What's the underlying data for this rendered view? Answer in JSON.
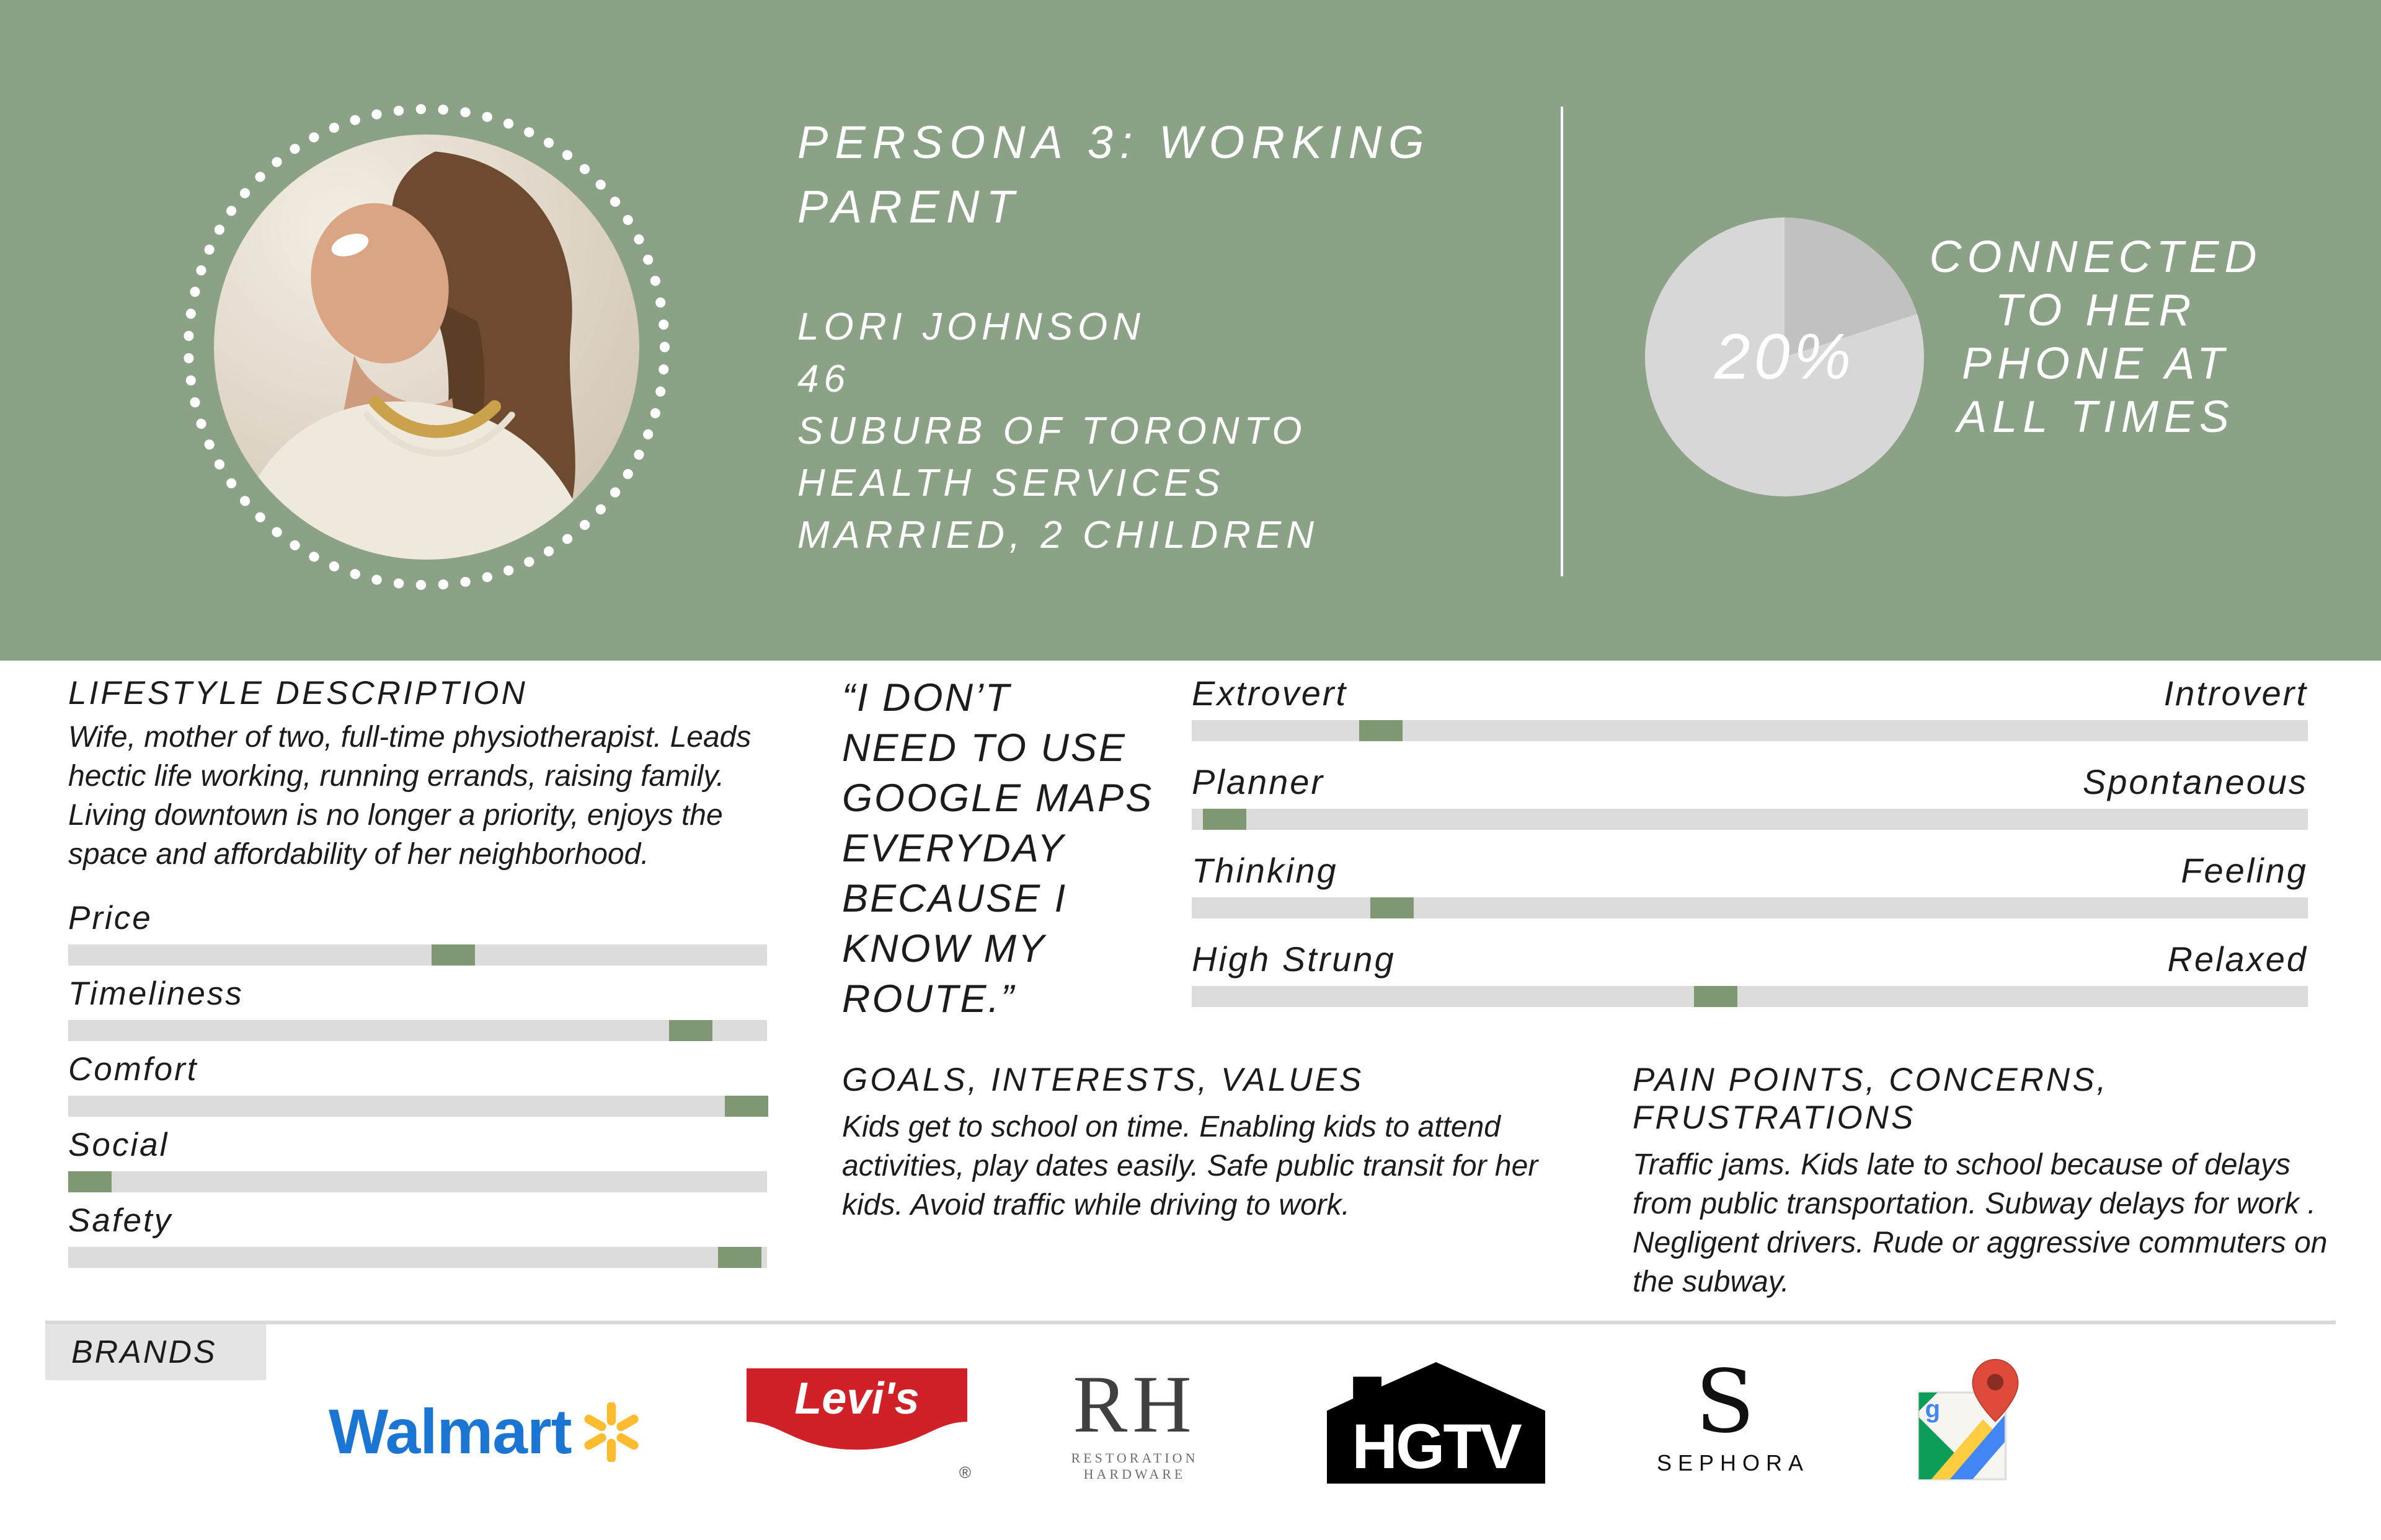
{
  "colors": {
    "header_bg": "#8ba287",
    "pie_light": "#d7d7d7",
    "pie_dark": "#c1c1c1",
    "track": "#dcdcdc",
    "marker": "#7f9873",
    "text_dark": "#1c1c1c",
    "divider": "#d8d8d8",
    "brands_box_bg": "#e4e4e4",
    "walmart_blue": "#1b75d2",
    "walmart_yellow": "#fdbb30",
    "levis_red": "#d02128",
    "gmaps_pin_red": "#de4b3b"
  },
  "header": {
    "title_lines": [
      "PERSONA 3: WORKING",
      "PARENT"
    ],
    "info_lines": [
      "LORI JOHNSON",
      "46",
      "SUBURB OF TORONTO",
      "HEALTH SERVICES",
      "MARRIED, 2 CHILDREN"
    ],
    "stat": {
      "percent": 20,
      "percent_label": "20%",
      "caption_lines": [
        "CONNECTED",
        "TO HER",
        "PHONE AT",
        "ALL TIMES"
      ]
    }
  },
  "lifestyle": {
    "heading": "LIFESTYLE DESCRIPTION",
    "body": "Wife, mother of two, full-time physiotherapist. Leads hectic life working, running errands, raising family. Living downtown is no longer a priority, enjoys the space and affordability of her neighborhood."
  },
  "sliders": {
    "items": [
      {
        "label": "Price",
        "value": 52
      },
      {
        "label": "Timeliness",
        "value": 86
      },
      {
        "label": "Comfort",
        "value": 94
      },
      {
        "label": "Social",
        "value": 0
      },
      {
        "label": "Safety",
        "value": 93
      }
    ]
  },
  "quote_lines": [
    "“I DON’T",
    "NEED TO USE",
    "GOOGLE MAPS",
    "EVERYDAY",
    "BECAUSE I",
    "KNOW MY",
    "ROUTE.”"
  ],
  "spectrums": {
    "items": [
      {
        "left": "Extrovert",
        "right": "Introvert",
        "value": 15
      },
      {
        "left": "Planner",
        "right": "Spontaneous",
        "value": 1
      },
      {
        "left": "Thinking",
        "right": "Feeling",
        "value": 16
      },
      {
        "left": "High Strung",
        "right": "Relaxed",
        "value": 45
      }
    ]
  },
  "goals": {
    "heading": "GOALS, INTERESTS, VALUES",
    "body": "Kids get to school on time. Enabling kids to attend activities, play dates easily. Safe public transit for her kids. Avoid traffic while driving to work."
  },
  "pain_points": {
    "heading": "PAIN POINTS, CONCERNS, FRUSTRATIONS",
    "body": "Traffic jams. Kids late to school because of delays from public transportation. Subway delays for work . Negligent drivers. Rude or aggressive commuters on the subway."
  },
  "brands": {
    "label": "BRANDS",
    "walmart": {
      "text": "Walmart"
    },
    "levis": {
      "text": "Levi's",
      "reg": "®"
    },
    "rh": {
      "letters": "RH",
      "subtext": "RESTORATION HARDWARE"
    },
    "hgtv": {
      "text": "HGTV"
    },
    "sephora": {
      "letter": "S",
      "text": "SEPHORA"
    },
    "gmaps": {
      "letter": "g"
    }
  }
}
